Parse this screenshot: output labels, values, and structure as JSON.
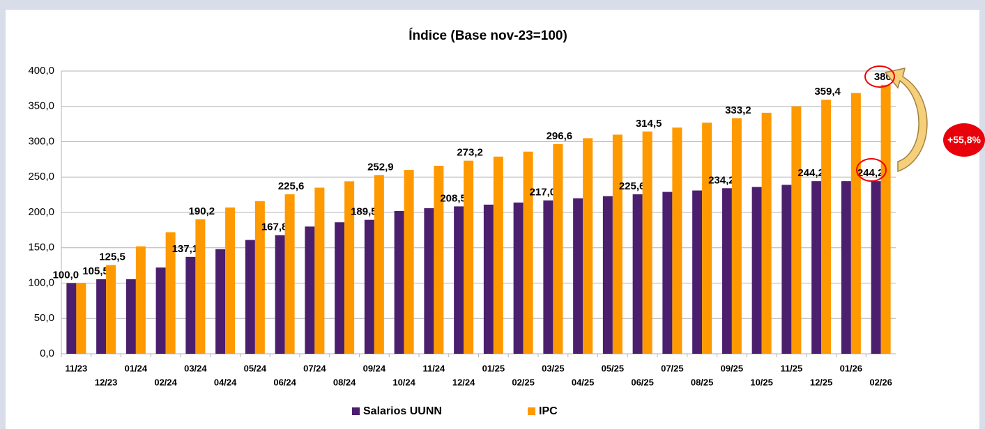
{
  "chart_data": {
    "type": "bar",
    "title": "Índice (Base nov-23=100)",
    "categories": [
      "11/23",
      "12/23",
      "01/24",
      "02/24",
      "03/24",
      "04/24",
      "05/24",
      "06/24",
      "07/24",
      "08/24",
      "09/24",
      "10/24",
      "11/24",
      "12/24",
      "01/25",
      "02/25",
      "03/25",
      "04/25",
      "05/25",
      "06/25",
      "07/25",
      "08/25",
      "09/25",
      "10/25",
      "11/25",
      "12/25",
      "01/26",
      "02/26"
    ],
    "series": [
      {
        "name": "Salarios UUNN",
        "color": "#4b1f6e",
        "values": [
          100.0,
          105.5,
          105.5,
          122,
          137.1,
          148,
          161,
          167.8,
          180,
          186,
          189.5,
          202,
          206,
          208.5,
          211,
          214,
          217.0,
          220,
          223,
          225.6,
          229,
          231,
          234.2,
          236,
          239,
          244.2,
          244.2,
          244.2
        ],
        "value_labels": [
          "100,0",
          "105,5",
          null,
          null,
          "137,1",
          null,
          null,
          "167,8",
          null,
          null,
          "189,5",
          null,
          null,
          "208,5",
          null,
          null,
          "217,0",
          null,
          null,
          "225,6",
          null,
          null,
          "234,2",
          null,
          null,
          "244,2",
          null,
          "244,2"
        ]
      },
      {
        "name": "IPC",
        "color": "#ff9900",
        "values": [
          100.0,
          125.5,
          152,
          172,
          190.2,
          207,
          216,
          225.6,
          235,
          244,
          252.9,
          260,
          266,
          273.2,
          279,
          286,
          296.6,
          305,
          310,
          314.5,
          320,
          327,
          333.2,
          341,
          350,
          359.4,
          369,
          380.5
        ],
        "value_labels": [
          null,
          "125,5",
          null,
          null,
          "190,2",
          null,
          null,
          "225,6",
          null,
          null,
          "252,9",
          null,
          null,
          "273,2",
          null,
          null,
          "296,6",
          null,
          null,
          "314,5",
          null,
          null,
          "333,2",
          null,
          null,
          "359,4",
          null,
          "380,5"
        ]
      }
    ],
    "ylim": [
      0,
      400
    ],
    "yticks": [
      {
        "value": 0,
        "label": "0,0"
      },
      {
        "value": 50,
        "label": "50,0"
      },
      {
        "value": 100,
        "label": "100,0"
      },
      {
        "value": 150,
        "label": "150,0"
      },
      {
        "value": 200,
        "label": "200,0"
      },
      {
        "value": 250,
        "label": "250,0"
      },
      {
        "value": 300,
        "label": "300,0"
      },
      {
        "value": 350,
        "label": "350,0"
      },
      {
        "value": 400,
        "label": "400,0"
      }
    ],
    "grid": true,
    "legend": "bottom",
    "annotation": "+55,8%"
  }
}
